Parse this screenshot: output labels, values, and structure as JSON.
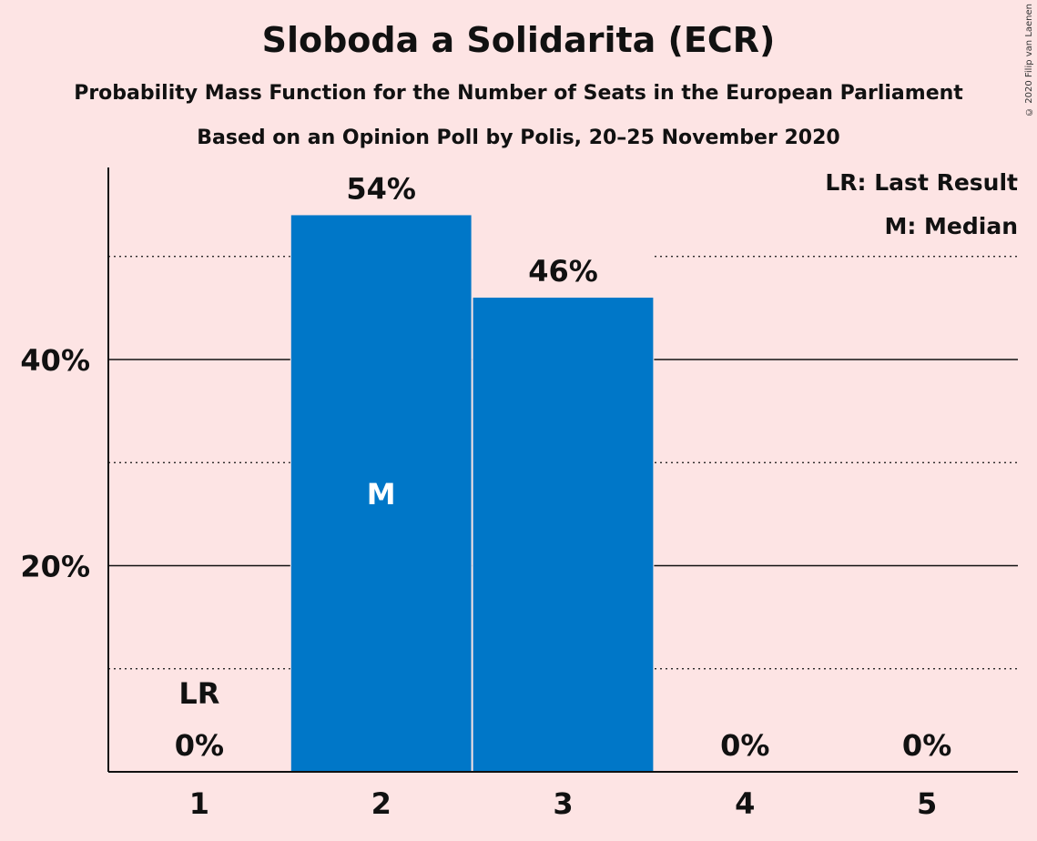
{
  "title": "Sloboda a Solidarita (ECR)",
  "subtitle": "Probability Mass Function for the Number of Seats in the European Parliament",
  "subtitle2": "Based on an Opinion Poll by Polis, 20–25 November 2020",
  "copyright": "© 2020 Filip van Laenen",
  "colors": {
    "bar": "#0077c8",
    "background": "#fde4e4"
  },
  "chart_data": {
    "type": "bar",
    "categories": [
      "1",
      "2",
      "3",
      "4",
      "5"
    ],
    "values": [
      0,
      54,
      46,
      0,
      0
    ],
    "value_labels": [
      "0%",
      "54%",
      "46%",
      "0%",
      "0%"
    ],
    "ylim": [
      0,
      58
    ],
    "y_ticks": [
      20,
      40
    ],
    "y_tick_labels": [
      "20%",
      "40%"
    ],
    "y_minor_gridlines": [
      10,
      30,
      50
    ],
    "last_result_category": "1",
    "last_result_marker": "LR",
    "median_category": "2",
    "median_marker": "M",
    "legend": [
      "LR: Last Result",
      "M: Median"
    ],
    "legend_position": "top-right",
    "xlabel": "",
    "ylabel": ""
  }
}
